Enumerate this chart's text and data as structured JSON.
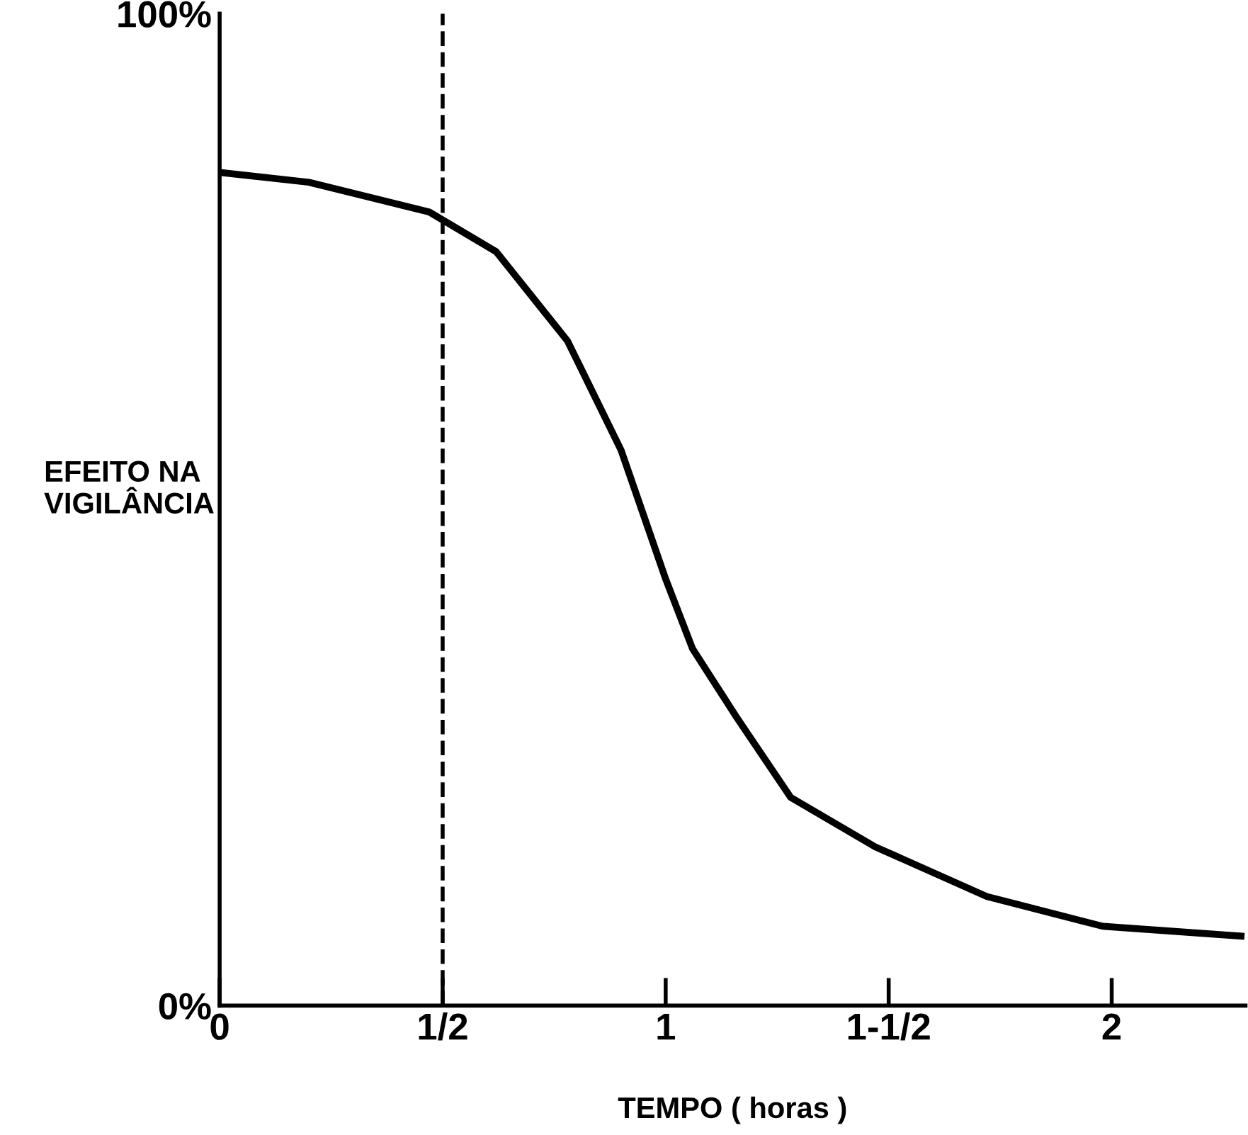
{
  "chart_data": {
    "type": "line",
    "xlabel": "TEMPO ( horas )",
    "ylabel": "EFEITO NA\nVIGILÂNCIA",
    "series": [
      {
        "color": "#000000",
        "x": [
          0,
          0.2,
          0.47,
          0.62,
          0.78,
          0.9,
          1.0,
          1.06,
          1.16,
          1.28,
          1.47,
          1.72,
          1.98,
          2.29
        ],
        "values": [
          84,
          83,
          80,
          76,
          67,
          56,
          43,
          36,
          29,
          21,
          16,
          11,
          8,
          7
        ]
      }
    ],
    "xlim": [
      0,
      2.3
    ],
    "ylim": [
      0,
      100
    ],
    "xticks": [
      {
        "value": 0,
        "label": "0"
      },
      {
        "value": 0.5,
        "label": "1/2"
      },
      {
        "value": 1,
        "label": "1"
      },
      {
        "value": 1.5,
        "label": "1-1/2"
      },
      {
        "value": 2,
        "label": "2"
      }
    ],
    "yticks": [
      {
        "value": 0,
        "label": "0%"
      },
      {
        "value": 100,
        "label": "100%"
      }
    ],
    "ref_lines": [
      {
        "axis": "x",
        "value": 0.5,
        "line_style": "dashed",
        "color": "#000000"
      }
    ],
    "grid": false,
    "legend": false,
    "marker": "none",
    "line_style": "solid"
  }
}
